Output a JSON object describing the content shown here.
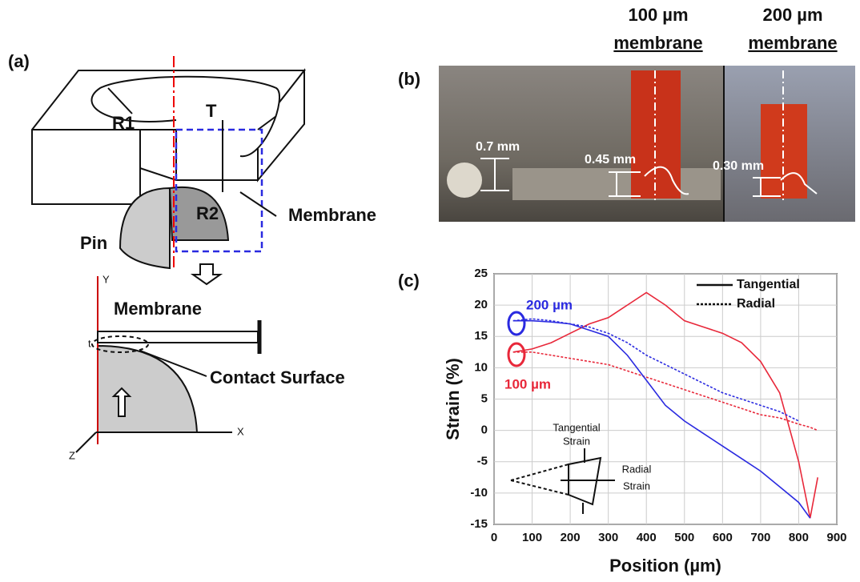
{
  "panel_a": {
    "label": "(a)",
    "r1": "R1",
    "t_upper": "T",
    "r2": "R2",
    "pin": "Pin",
    "membrane_top": "Membrane",
    "membrane_bottom": "Membrane",
    "contact": "Contact Surface",
    "axis_y": "Y",
    "axis_x": "X",
    "axis_z": "Z",
    "axis_t": "t"
  },
  "panel_b": {
    "label": "(b)",
    "header_100": [
      "100 µm",
      "membrane"
    ],
    "header_200": [
      "200 µm",
      "membrane"
    ],
    "dims": [
      "0.7 mm",
      "0.45 mm",
      "0.30 mm"
    ]
  },
  "panel_c_label": "(c)",
  "chart_data": {
    "type": "line",
    "xlabel": "Position (µm)",
    "ylabel": "Strain (%)",
    "x": [
      50,
      100,
      150,
      200,
      250,
      300,
      350,
      400,
      450,
      500,
      550,
      600,
      650,
      700,
      750,
      800,
      830,
      850
    ],
    "series": [
      {
        "color": "#e8283a",
        "style": "solid",
        "values": [
          12.5,
          13,
          14,
          15.5,
          17,
          18,
          20,
          22,
          20,
          17.5,
          16.5,
          15.5,
          14,
          11,
          6,
          -5,
          -14,
          -7.5
        ]
      },
      {
        "color": "#e8283a",
        "style": "dotted",
        "values": [
          12.5,
          12.5,
          12,
          11.5,
          11,
          10.5,
          9.5,
          8.5,
          7.5,
          6.5,
          5.5,
          4.5,
          3.5,
          2.5,
          2,
          1,
          0.5,
          0
        ]
      },
      {
        "color": "#2a2ae0",
        "style": "solid",
        "values": [
          17.5,
          17.5,
          17.3,
          17,
          16,
          15,
          12,
          8,
          4,
          1.5,
          -0.5,
          -2.5,
          -4.5,
          -6.5,
          -9,
          -11.5,
          -14,
          null
        ]
      },
      {
        "color": "#2a2ae0",
        "style": "dotted",
        "values": [
          17.5,
          17.8,
          17.5,
          17,
          16.5,
          15.5,
          14,
          12,
          10.5,
          9,
          7.5,
          6,
          5,
          4,
          3,
          1.5,
          null,
          null
        ]
      }
    ],
    "legend": [
      {
        "label": "Tangential",
        "style": "solid"
      },
      {
        "label": "Radial",
        "style": "dotted"
      }
    ],
    "annotations": [
      {
        "text": "200 µm",
        "color": "#2a2ae0"
      },
      {
        "text": "100 µm",
        "color": "#e8283a"
      }
    ],
    "inset": [
      "Tangential",
      "Strain",
      "Radial",
      "Strain"
    ],
    "xlim": [
      0,
      900
    ],
    "ylim": [
      -15,
      25
    ],
    "xticks": [
      0,
      100,
      200,
      300,
      400,
      500,
      600,
      700,
      800,
      900
    ],
    "yticks": [
      -15,
      -10,
      -5,
      0,
      5,
      10,
      15,
      20,
      25
    ],
    "grid": true
  }
}
